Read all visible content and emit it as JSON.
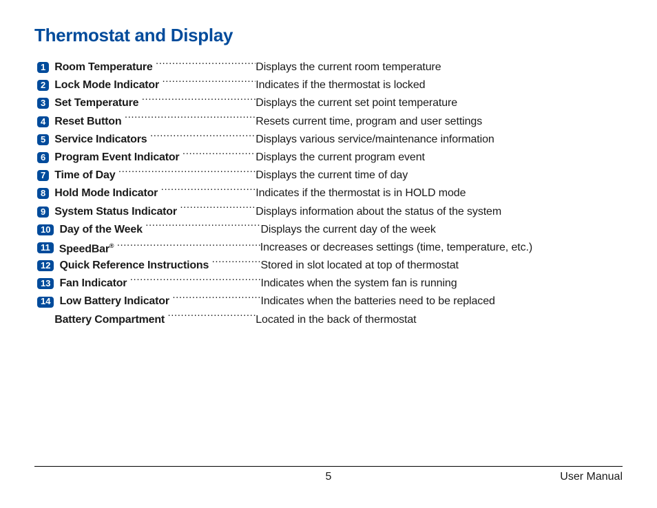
{
  "title": "Thermostat and Display",
  "colors": {
    "accent": "#004b9b",
    "text": "#1a1a1a",
    "page_bg": "#ffffff"
  },
  "items": [
    {
      "num": "1",
      "label": "Room Temperature",
      "desc": "Displays the current room temperature"
    },
    {
      "num": "2",
      "label": "Lock Mode Indicator",
      "desc": "Indicates if the thermostat is locked"
    },
    {
      "num": "3",
      "label": "Set Temperature",
      "desc": "Displays the current set point temperature"
    },
    {
      "num": "4",
      "label": "Reset Button",
      "desc": "Resets current time, program and user settings"
    },
    {
      "num": "5",
      "label": "Service Indicators",
      "desc": "Displays various service/maintenance information"
    },
    {
      "num": "6",
      "label": "Program Event Indicator",
      "desc": "Displays the current program event"
    },
    {
      "num": "7",
      "label": "Time of Day",
      "desc": "Displays the current time of day"
    },
    {
      "num": "8",
      "label": "Hold Mode Indicator",
      "desc": "Indicates if the thermostat is in HOLD mode"
    },
    {
      "num": "9",
      "label": "System Status Indicator",
      "desc": "Displays information about the status of the system"
    },
    {
      "num": "10",
      "label": "Day of the Week",
      "desc": "Displays the current day of the week"
    },
    {
      "num": "11",
      "label": "SpeedBar",
      "sup": "®",
      "desc": "Increases or decreases settings (time, temperature, etc.)"
    },
    {
      "num": "12",
      "label": "Quick Reference Instructions",
      "desc": "Stored in slot located at top of thermostat"
    },
    {
      "num": "13",
      "label": "Fan Indicator",
      "desc": "Indicates when the system fan is running"
    },
    {
      "num": "14",
      "label": "Low Battery Indicator",
      "desc": "Indicates when the batteries need to be replaced"
    },
    {
      "num": "",
      "label": "Battery Compartment",
      "desc": "Located in the back of thermostat"
    }
  ],
  "footer": {
    "page_number": "5",
    "doc_title": "User Manual"
  }
}
